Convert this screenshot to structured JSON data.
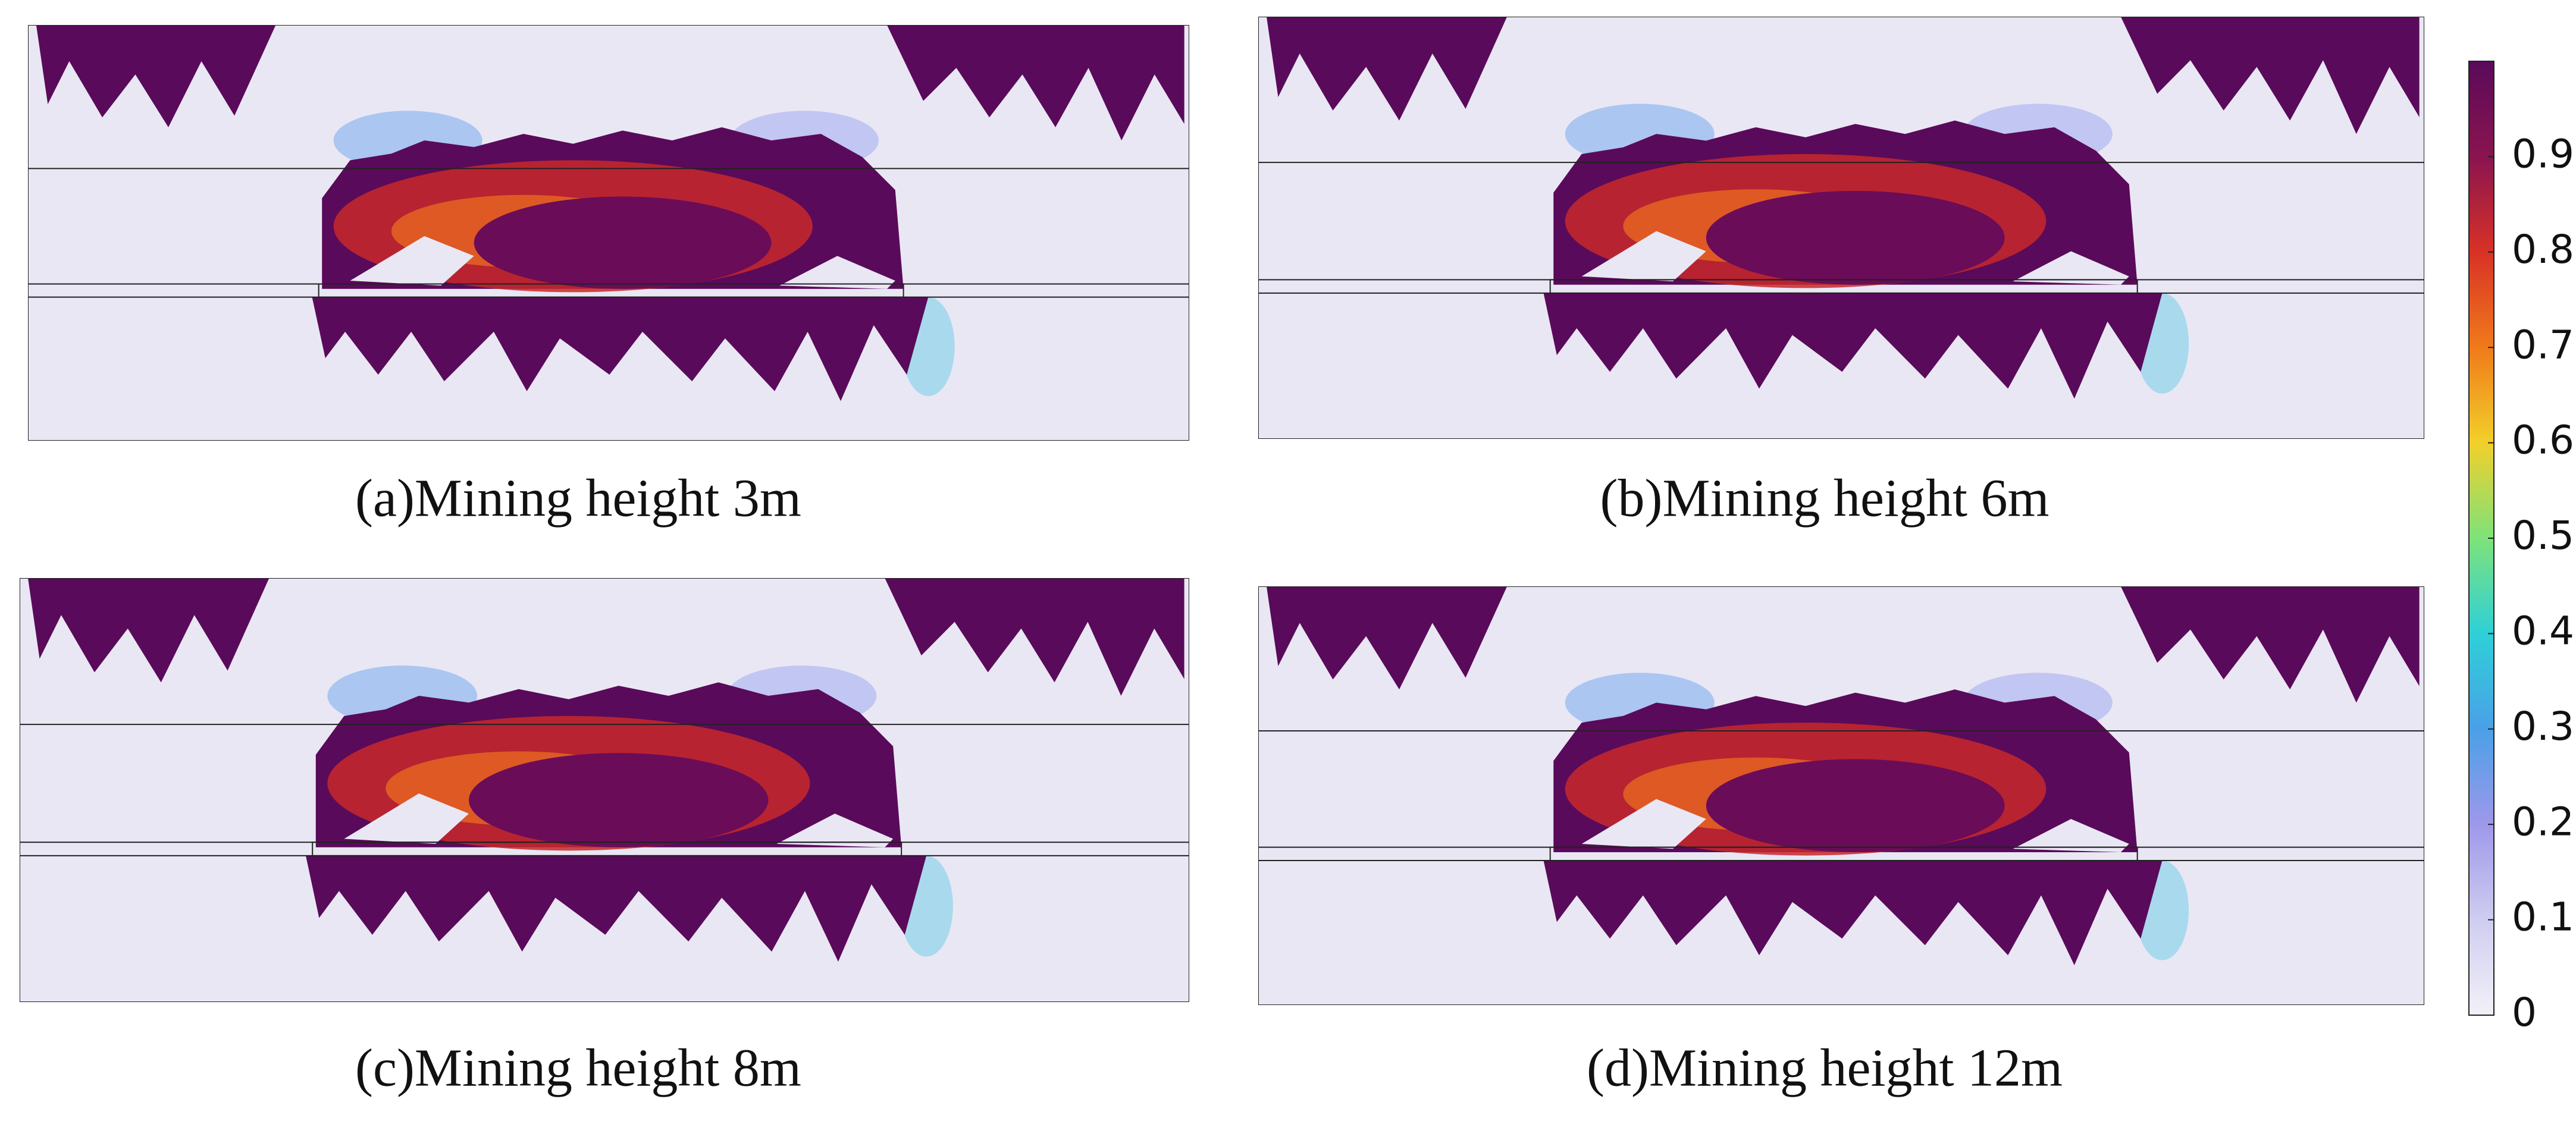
{
  "panels": [
    {
      "caption": "(a)Mining height 3m"
    },
    {
      "caption": "(b)Mining height 6m"
    },
    {
      "caption": "(c)Mining height 8m"
    },
    {
      "caption": "(d)Mining height 12m"
    }
  ],
  "colorbar": {
    "range": [
      0,
      1
    ],
    "ticks": [
      0,
      0.1,
      0.2,
      0.3,
      0.4,
      0.5,
      0.6,
      0.7,
      0.8,
      0.9
    ]
  }
}
